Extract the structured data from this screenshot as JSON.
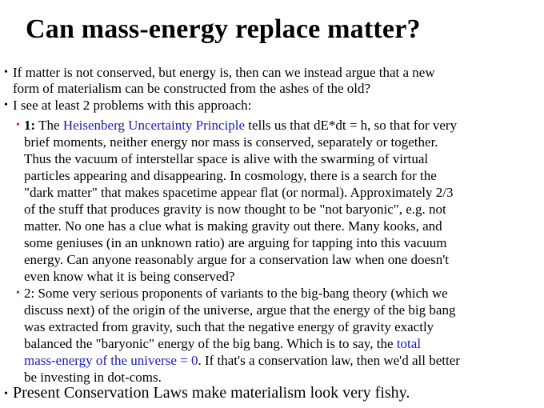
{
  "title": "Can mass-energy replace matter?",
  "colors": {
    "link": "#1a1ab4",
    "sub_bullet": "#d02020"
  },
  "bullet1": {
    "lines": [
      "If matter is not conserved, but energy is, then can we instead argue that a new",
      "form of materialism can be constructed from the ashes of the old?"
    ]
  },
  "bullet2": {
    "text": "I see at least 2 problems with this approach:"
  },
  "sub1": {
    "label": "1:",
    "pre": "The ",
    "link": "Heisenberg Uncertainty Principle",
    "post": " tells us that dE*dt = h, so that for very",
    "lines": [
      "brief moments, neither energy nor mass is conserved, separately or together.",
      "Thus the vacuum of interstellar space is alive with the swarming of virtual",
      "particles appearing and disappearing.  In cosmology, there is a search for the",
      "\"dark matter\" that makes spacetime appear flat (or normal). Approximately 2/3",
      "of the stuff that produces gravity is now thought to be \"not baryonic\", e.g. not",
      "matter. No one has a clue what is making gravity out there. Many kooks, and",
      "some geniuses (in an unknown ratio) are arguing for tapping into this vacuum",
      "energy. Can anyone reasonably argue for a conservation law when one doesn't",
      "even know what it is being conserved?"
    ]
  },
  "sub2": {
    "lines": [
      "2: Some very serious proponents of variants to the big-bang theory (which we",
      "discuss next) of the origin of the universe, argue that the energy of the big bang",
      "was extracted from gravity, such that the negative energy of gravity exactly"
    ],
    "line4_pre": "balanced the \"baryonic\" energy of the big bang. Which is to say, the ",
    "line4_link": "total",
    "line5_link": "mass-energy of the universe = 0",
    "line5_post": ". If that's a conservation law, then we'd all better",
    "line6": "be investing in dot-coms."
  },
  "bullet3": {
    "text": "Present Conservation Laws make materialism look very fishy."
  }
}
